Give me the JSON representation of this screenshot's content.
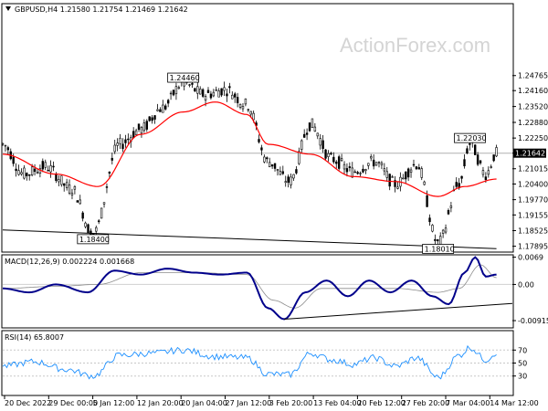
{
  "chart_data": [
    {
      "type": "candlestick",
      "title": "GBPUSD,H4  1.21580 1.21754 1.21469 1.21642",
      "symbol": "GBPUSD",
      "timeframe": "H4",
      "ohlc_current": {
        "open": 1.2158,
        "high": 1.21754,
        "low": 1.21469,
        "close": 1.21642
      },
      "ylim": [
        1.1766,
        1.2766
      ],
      "y_ticks": [
        "1.24765",
        "1.24160",
        "1.23520",
        "1.22880",
        "1.22250",
        "1.21642",
        "1.21015",
        "1.20400",
        "1.19770",
        "1.19155",
        "1.18525",
        "1.17895"
      ],
      "x_ticks": [
        "20 Dec 2022",
        "29 Dec 00:00",
        "5 Jan 12:00",
        "12 Jan 20:00",
        "20 Jan 04:00",
        "27 Jan 12:00",
        "3 Feb 20:00",
        "13 Feb 04:00",
        "20 Feb 12:00",
        "27 Feb 20:00",
        "7 Mar 04:00",
        "14 Mar 12:00"
      ],
      "price_key_points": [
        {
          "t": 0,
          "v": 1.22
        },
        {
          "t": 4,
          "v": 1.208
        },
        {
          "t": 8,
          "v": 1.211
        },
        {
          "t": 13,
          "v": 1.202
        },
        {
          "t": 17,
          "v": 1.184
        },
        {
          "t": 22,
          "v": 1.22
        },
        {
          "t": 26,
          "v": 1.226
        },
        {
          "t": 30,
          "v": 1.2346
        },
        {
          "t": 34,
          "v": 1.2446
        },
        {
          "t": 38,
          "v": 1.24
        },
        {
          "t": 42,
          "v": 1.242
        },
        {
          "t": 46,
          "v": 1.236
        },
        {
          "t": 50,
          "v": 1.213
        },
        {
          "t": 54,
          "v": 1.205
        },
        {
          "t": 58,
          "v": 1.228
        },
        {
          "t": 62,
          "v": 1.214
        },
        {
          "t": 66,
          "v": 1.209
        },
        {
          "t": 70,
          "v": 1.213
        },
        {
          "t": 74,
          "v": 1.204
        },
        {
          "t": 78,
          "v": 1.212
        },
        {
          "t": 82,
          "v": 1.1801
        },
        {
          "t": 86,
          "v": 1.204
        },
        {
          "t": 88,
          "v": 1.2203
        },
        {
          "t": 91,
          "v": 1.208
        },
        {
          "t": 93,
          "v": 1.2164
        }
      ],
      "ma_key_points": [
        {
          "t": 0,
          "v": 1.216
        },
        {
          "t": 10,
          "v": 1.208
        },
        {
          "t": 18,
          "v": 1.203
        },
        {
          "t": 26,
          "v": 1.224
        },
        {
          "t": 34,
          "v": 1.233
        },
        {
          "t": 40,
          "v": 1.237
        },
        {
          "t": 46,
          "v": 1.232
        },
        {
          "t": 50,
          "v": 1.22
        },
        {
          "t": 58,
          "v": 1.216
        },
        {
          "t": 66,
          "v": 1.207
        },
        {
          "t": 74,
          "v": 1.205
        },
        {
          "t": 82,
          "v": 1.199
        },
        {
          "t": 87,
          "v": 1.203
        },
        {
          "t": 93,
          "v": 1.206
        }
      ],
      "annotations": [
        {
          "text": "1.24460",
          "t": 34,
          "v": 1.2446,
          "position": "above"
        },
        {
          "text": "1.18400",
          "t": 17,
          "v": 1.184,
          "position": "below"
        },
        {
          "text": "1.22030",
          "t": 88,
          "v": 1.2203,
          "position": "above"
        },
        {
          "text": "1.18010",
          "t": 82,
          "v": 1.1801,
          "position": "below"
        }
      ],
      "current_price_label": "1.21642",
      "reference_line": 1.21642,
      "trendline": {
        "t1": 0,
        "v1": 1.1855,
        "t2": 93,
        "v2": 1.178
      }
    },
    {
      "type": "line",
      "title": "MACD(12,26,9) 0.002224 0.001668",
      "ylim": [
        -0.011,
        0.0075
      ],
      "y_ticks": [
        "0.0069",
        "0.00",
        "-0.009158"
      ],
      "macd_key_points": [
        {
          "t": 0,
          "v": -0.001
        },
        {
          "t": 5,
          "v": -0.002
        },
        {
          "t": 10,
          "v": 0.0
        },
        {
          "t": 16,
          "v": -0.002
        },
        {
          "t": 21,
          "v": 0.0035
        },
        {
          "t": 26,
          "v": 0.0025
        },
        {
          "t": 31,
          "v": 0.004
        },
        {
          "t": 36,
          "v": 0.003
        },
        {
          "t": 41,
          "v": 0.0025
        },
        {
          "t": 46,
          "v": 0.003
        },
        {
          "t": 50,
          "v": -0.006
        },
        {
          "t": 53,
          "v": -0.0088
        },
        {
          "t": 57,
          "v": -0.002
        },
        {
          "t": 61,
          "v": 0.001
        },
        {
          "t": 65,
          "v": -0.003
        },
        {
          "t": 69,
          "v": 0.001
        },
        {
          "t": 73,
          "v": -0.002
        },
        {
          "t": 77,
          "v": 0.001
        },
        {
          "t": 81,
          "v": -0.003
        },
        {
          "t": 84,
          "v": -0.005
        },
        {
          "t": 87,
          "v": 0.003
        },
        {
          "t": 89,
          "v": 0.0069
        },
        {
          "t": 91,
          "v": 0.002
        },
        {
          "t": 93,
          "v": 0.0025
        }
      ],
      "signal_key_points": [
        {
          "t": 0,
          "v": -0.001
        },
        {
          "t": 10,
          "v": -0.0005
        },
        {
          "t": 18,
          "v": 0.0
        },
        {
          "t": 26,
          "v": 0.003
        },
        {
          "t": 36,
          "v": 0.003
        },
        {
          "t": 46,
          "v": 0.0025
        },
        {
          "t": 51,
          "v": -0.004
        },
        {
          "t": 55,
          "v": -0.006
        },
        {
          "t": 60,
          "v": -0.001
        },
        {
          "t": 66,
          "v": -0.001
        },
        {
          "t": 74,
          "v": -0.001
        },
        {
          "t": 82,
          "v": -0.002
        },
        {
          "t": 86,
          "v": -0.001
        },
        {
          "t": 90,
          "v": 0.005
        },
        {
          "t": 93,
          "v": 0.0017
        }
      ],
      "trendline": {
        "t1": 53,
        "v1": -0.0088,
        "t2": 96,
        "v2": -0.0048
      }
    },
    {
      "type": "line",
      "title": "RSI(14) 65.8007",
      "ylim": [
        0,
        100
      ],
      "y_ticks": [
        "70",
        "50",
        "30"
      ],
      "rsi_key_points": [
        {
          "t": 0,
          "v": 45
        },
        {
          "t": 6,
          "v": 52
        },
        {
          "t": 12,
          "v": 40
        },
        {
          "t": 17,
          "v": 30
        },
        {
          "t": 22,
          "v": 62
        },
        {
          "t": 28,
          "v": 65
        },
        {
          "t": 34,
          "v": 70
        },
        {
          "t": 40,
          "v": 60
        },
        {
          "t": 46,
          "v": 58
        },
        {
          "t": 50,
          "v": 33
        },
        {
          "t": 54,
          "v": 32
        },
        {
          "t": 58,
          "v": 65
        },
        {
          "t": 62,
          "v": 55
        },
        {
          "t": 66,
          "v": 48
        },
        {
          "t": 70,
          "v": 58
        },
        {
          "t": 74,
          "v": 45
        },
        {
          "t": 78,
          "v": 58
        },
        {
          "t": 82,
          "v": 28
        },
        {
          "t": 86,
          "v": 62
        },
        {
          "t": 88,
          "v": 74
        },
        {
          "t": 91,
          "v": 55
        },
        {
          "t": 93,
          "v": 66
        }
      ]
    }
  ],
  "watermark": "ActionForex.com",
  "colors": {
    "candle": "#000000",
    "ma": "#ff0000",
    "macd": "#00008b",
    "signal": "#8c8c8c",
    "rsi": "#1e90ff",
    "grid": "#cfcfcf",
    "axis": "#000000"
  }
}
